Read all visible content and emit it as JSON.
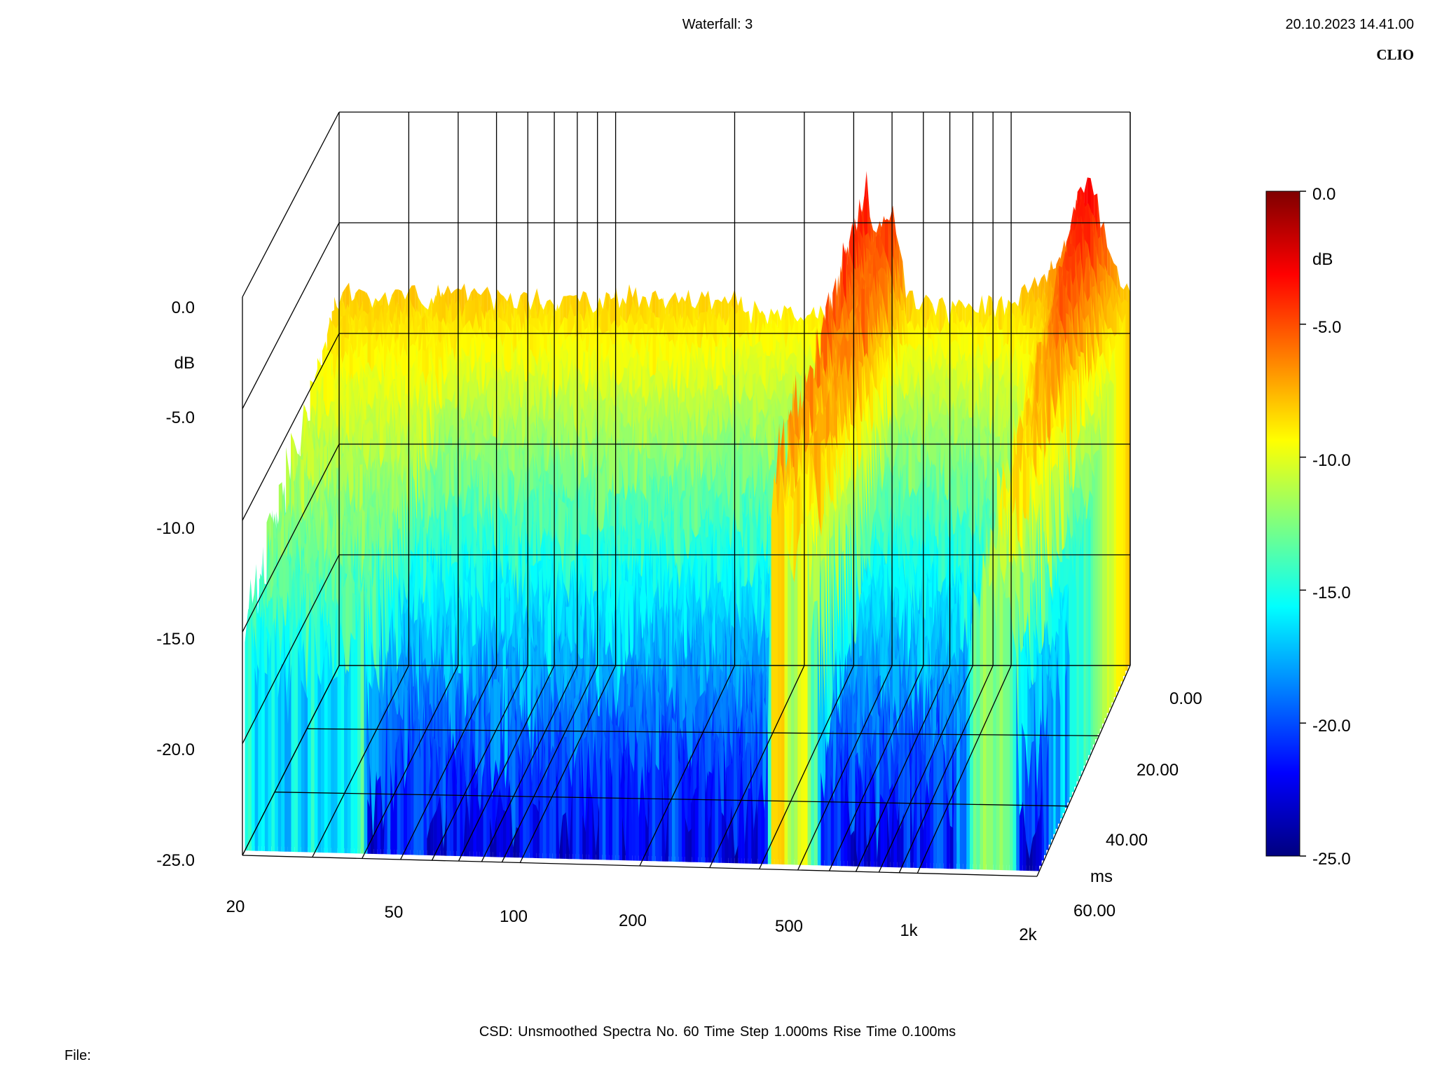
{
  "header": {
    "title": "Waterfall: 3",
    "timestamp": "20.10.2023 14.41.00",
    "brand": "CLIO"
  },
  "footer": {
    "info": "CSD:   Unsmoothed   Spectra No. 60   Time Step 1.000ms   Rise Time 0.100ms",
    "file_label": "File:"
  },
  "colors": {
    "scale": [
      "#00007f",
      "#0000ff",
      "#007fff",
      "#00ffff",
      "#7fff7f",
      "#ffff00",
      "#ff7f00",
      "#ff0000",
      "#7f0000"
    ],
    "grid": "#000000"
  },
  "chart_data": {
    "type": "waterfall",
    "title": "Waterfall: 3",
    "x_axis": {
      "scale": "log",
      "range": [
        20,
        2000
      ],
      "tick_values": [
        20,
        50,
        100,
        200,
        500,
        1000,
        2000
      ],
      "tick_labels": [
        "20",
        "50",
        "100",
        "200",
        "500",
        "1k",
        "2k"
      ]
    },
    "y_axis": {
      "label": "dB",
      "range": [
        -25,
        0
      ],
      "tick_values": [
        0,
        -5,
        -10,
        -15,
        -20,
        -25
      ],
      "tick_labels": [
        "0.0",
        "-5.0",
        "-10.0",
        "-15.0",
        "-20.0",
        "-25.0"
      ]
    },
    "z_axis": {
      "label": "ms",
      "range": [
        0,
        60
      ],
      "tick_values": [
        0,
        20,
        40,
        60
      ],
      "tick_labels": [
        "0.00",
        "20.00",
        "40.00",
        "60.00"
      ]
    },
    "colorbar": {
      "label": "dB",
      "range": [
        -25,
        0
      ],
      "tick_labels": [
        "0.0",
        "-5.0",
        "-10.0",
        "-15.0",
        "-20.0",
        "-25.0"
      ]
    },
    "spectra_count": 60,
    "time_step_ms": 1.0,
    "rise_time_ms": 0.1,
    "smoothing": "Unsmoothed",
    "first_slice_level_db": [
      [
        20,
        -8.2
      ],
      [
        30,
        -8.4
      ],
      [
        40,
        -8.3
      ],
      [
        50,
        -8.5
      ],
      [
        60,
        -8.4
      ],
      [
        80,
        -8.6
      ],
      [
        100,
        -8.3
      ],
      [
        125,
        -8.5
      ],
      [
        150,
        -8.4
      ],
      [
        200,
        -8.6
      ],
      [
        220,
        -9.0
      ],
      [
        300,
        -9.0
      ],
      [
        400,
        -9.2
      ],
      [
        430,
        -3.0
      ],
      [
        450,
        -5.5
      ],
      [
        500,
        -4.5
      ],
      [
        550,
        -8.6
      ],
      [
        700,
        -9.0
      ],
      [
        900,
        -8.8
      ],
      [
        1000,
        -8.6
      ],
      [
        1200,
        -7.8
      ],
      [
        1400,
        -6.0
      ],
      [
        1500,
        -3.5
      ],
      [
        1600,
        -3.2
      ],
      [
        1700,
        -5.0
      ],
      [
        1800,
        -7.0
      ],
      [
        2000,
        -8.0
      ]
    ]
  }
}
